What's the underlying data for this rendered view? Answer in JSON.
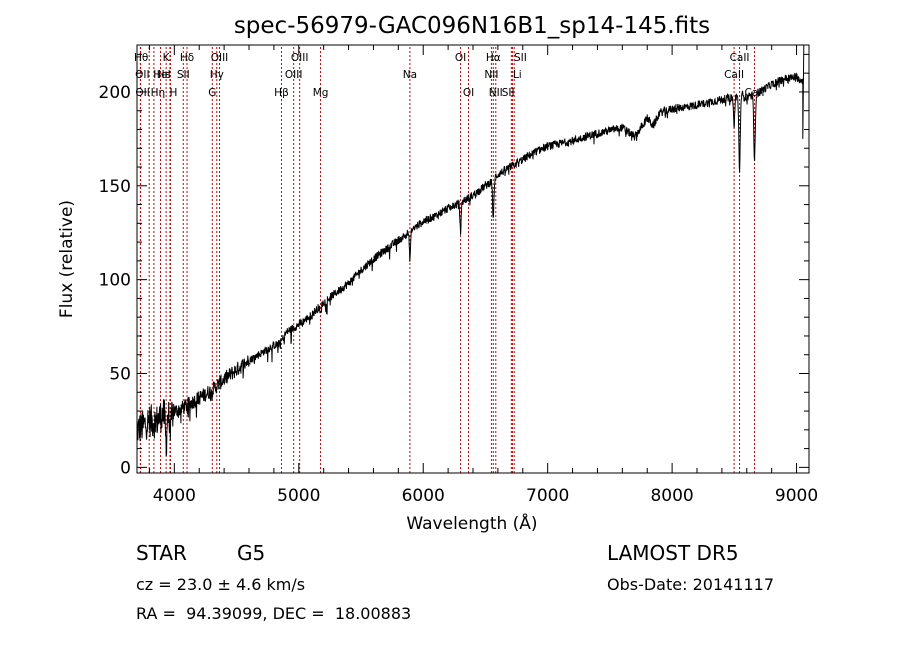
{
  "title": "spec-56979-GAC096N16B1_sp14-145.fits",
  "info": {
    "object_class": "STAR",
    "subclass": "G5",
    "survey": "LAMOST DR5",
    "cz": "cz = 23.0 ± 4.6 km/s",
    "obs_date": "Obs-Date: 20141117",
    "coords": "RA =  94.39099, DEC =  18.00883"
  },
  "chart_data": {
    "type": "line",
    "title": "spec-56979-GAC096N16B1_sp14-145.fits",
    "xlabel": "Wavelength (Å)",
    "ylabel": "Flux (relative)",
    "xlim": [
      3700,
      9100
    ],
    "ylim": [
      -3,
      225
    ],
    "xticks": [
      4000,
      5000,
      6000,
      7000,
      8000,
      9000
    ],
    "yticks": [
      0,
      50,
      100,
      150,
      200
    ],
    "line_color": "#000000",
    "marker_color": "#cc0000",
    "series": [
      {
        "x": [
          3700,
          3750,
          3800,
          3850,
          3900,
          3950,
          4000,
          4050,
          4100,
          4150,
          4200,
          4250,
          4300,
          4350,
          4400,
          4500,
          4600,
          4700,
          4800,
          4850,
          4900,
          5000,
          5100,
          5200,
          5300,
          5400,
          5500,
          5600,
          5700,
          5800,
          5900,
          6000,
          6100,
          6200,
          6300,
          6400,
          6500,
          6563,
          6600,
          6700,
          6800,
          6900,
          7000,
          7200,
          7400,
          7600,
          7700,
          7800,
          7850,
          7900,
          8000,
          8200,
          8400,
          8500,
          8550,
          8600,
          8700,
          8800,
          8900,
          9000,
          9050
        ],
        "y": [
          20,
          22,
          25,
          24,
          28,
          27,
          30,
          31,
          33,
          35,
          37,
          39,
          41,
          44,
          47,
          52,
          57,
          61,
          65,
          66,
          72,
          76,
          81,
          88,
          93,
          98,
          105,
          111,
          116,
          121,
          126,
          131,
          134,
          138,
          141,
          145,
          150,
          153,
          156,
          160,
          164,
          168,
          171,
          174,
          178,
          181,
          176,
          186,
          182,
          189,
          191,
          193,
          196,
          197,
          199,
          197,
          200,
          204,
          207,
          208,
          206
        ],
        "dips": [
          {
            "x": 3934,
            "depth": 15
          },
          {
            "x": 3969,
            "depth": 12
          },
          {
            "x": 5175,
            "depth": 5
          },
          {
            "x": 5893,
            "depth": 14
          },
          {
            "x": 6300,
            "depth": 15
          },
          {
            "x": 6563,
            "depth": 22
          },
          {
            "x": 8498,
            "depth": 15
          },
          {
            "x": 8542,
            "depth": 40
          },
          {
            "x": 8662,
            "depth": 35
          }
        ]
      }
    ],
    "line_markers": [
      {
        "label": "Hθ",
        "x": 3798,
        "row": 0,
        "loff": -8
      },
      {
        "label": "OII",
        "x": 3727,
        "row": 1,
        "loff": 2
      },
      {
        "label": "OII",
        "x": 3729,
        "row": 2,
        "loff": 2
      },
      {
        "label": "Hε",
        "x": 3889,
        "row": 1,
        "loff": 3
      },
      {
        "label": "Hη",
        "x": 3836,
        "row": 2,
        "loff": 4
      },
      {
        "label": "K",
        "x": 3934,
        "row": 0,
        "loff": 0
      },
      {
        "label": "HeI",
        "x": 3965,
        "row": 1,
        "loff": -8
      },
      {
        "label": "H",
        "x": 3969,
        "row": 2,
        "loff": 3
      },
      {
        "label": "Hδ",
        "x": 4102,
        "row": 0,
        "loff": 0
      },
      {
        "label": "SII",
        "x": 4072,
        "row": 1,
        "loff": 0
      },
      {
        "label": "OIII",
        "x": 4363,
        "row": 0,
        "loff": 0
      },
      {
        "label": "Hγ",
        "x": 4341,
        "row": 1,
        "loff": 0
      },
      {
        "label": "G",
        "x": 4305,
        "row": 2,
        "loff": 0
      },
      {
        "label": "Hβ",
        "x": 4861,
        "row": 2,
        "loff": 0
      },
      {
        "label": "OIII",
        "x": 5007,
        "row": 0,
        "loff": 0
      },
      {
        "label": "OIII",
        "x": 4959,
        "row": 1,
        "loff": 0
      },
      {
        "label": "Mg",
        "x": 5175,
        "row": 2,
        "loff": 0
      },
      {
        "label": "Na",
        "x": 5893,
        "row": 1,
        "loff": 0
      },
      {
        "label": "OI",
        "x": 6300,
        "row": 0,
        "loff": 0
      },
      {
        "label": "OI",
        "x": 6364,
        "row": 2,
        "loff": 0
      },
      {
        "label": "Hα",
        "x": 6563,
        "row": 0,
        "loff": 0
      },
      {
        "label": "NII",
        "x": 6548,
        "row": 1,
        "loff": 0
      },
      {
        "label": "NII",
        "x": 6583,
        "row": 2,
        "loff": 0
      },
      {
        "label": "SII",
        "x": 6717,
        "row": 0,
        "loff": 8
      },
      {
        "label": "Li",
        "x": 6708,
        "row": 1,
        "loff": 6
      },
      {
        "label": "SII",
        "x": 6731,
        "row": 2,
        "loff": -6
      },
      {
        "label": "CaII",
        "x": 8542,
        "row": 0,
        "loff": 0
      },
      {
        "label": "CaII",
        "x": 8498,
        "row": 1,
        "loff": 0
      },
      {
        "label": "CaII",
        "x": 8662,
        "row": 2,
        "loff": 0
      }
    ]
  }
}
